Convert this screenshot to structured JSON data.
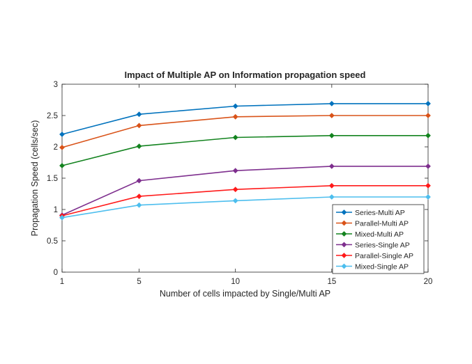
{
  "chart_data": {
    "type": "line",
    "title": "Impact of Multiple AP on Information propagation speed",
    "xlabel": "Number of cells impacted by Single/Multi AP",
    "ylabel": "Propagation Speed (cells/sec)",
    "x": [
      1,
      5,
      10,
      15,
      20
    ],
    "xticks": [
      "1",
      "5",
      "10",
      "15",
      "20"
    ],
    "yticks": [
      "0",
      "0.5",
      "1",
      "1.5",
      "2",
      "2.5",
      "3"
    ],
    "ylim": [
      0,
      3
    ],
    "grid": false,
    "legend_position": "bottom-right",
    "series": [
      {
        "name": "Series-Multi AP",
        "values": [
          2.2,
          2.52,
          2.65,
          2.69,
          2.69
        ],
        "color": "#0072bd",
        "marker": "diamond"
      },
      {
        "name": "Parallel-Multi AP",
        "values": [
          1.99,
          2.34,
          2.48,
          2.5,
          2.5
        ],
        "color": "#d95319",
        "marker": "diamond"
      },
      {
        "name": "Mixed-Multi AP",
        "values": [
          1.7,
          2.01,
          2.15,
          2.18,
          2.18
        ],
        "color": "#13831f",
        "marker": "diamond"
      },
      {
        "name": "Series-Single AP",
        "values": [
          0.91,
          1.46,
          1.62,
          1.69,
          1.69
        ],
        "color": "#7e2f8e",
        "marker": "diamond"
      },
      {
        "name": "Parallel-Single AP",
        "values": [
          0.9,
          1.21,
          1.32,
          1.38,
          1.38
        ],
        "color": "#ff1a1a",
        "marker": "diamond"
      },
      {
        "name": "Mixed-Single AP",
        "values": [
          0.87,
          1.07,
          1.14,
          1.2,
          1.2
        ],
        "color": "#4dbeee",
        "marker": "diamond"
      }
    ]
  }
}
